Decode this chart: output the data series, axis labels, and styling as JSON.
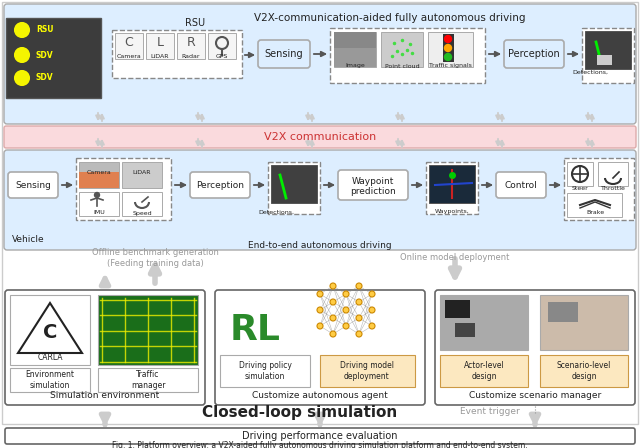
{
  "title_top": "V2X-communication-aided fully autonomous driving",
  "v2x_comm_label": "V2X communication",
  "vehicle_label": "Vehicle",
  "end_to_end_label": "End-to-end autonomous driving",
  "rsu_label": "RSU",
  "closed_loop_label": "Closed-loop simulation",
  "driving_perf_label": "Driving performance evaluation",
  "offline_label": "Offline benchmark generation\n(Feeding training data)",
  "online_label": "Online model deployment",
  "event_trigger_label": "Event trigger",
  "sim_env_label": "Simulation environment",
  "customize_agent_label": "Customize autonomous agent",
  "customize_scenario_label": "Customize scenario manager",
  "fig_caption": "Fig. 1. Platform overview: a V2X-aided fully autonomous driving simulation platform and end-to-end system.",
  "light_blue": "#ddeeff",
  "light_pink": "#fadadd",
  "orange_box": "#fce8c0",
  "green_rl": "#2a8a2a",
  "text_dark": "#222222",
  "text_gray": "#999999",
  "arrow_gray": "#bbbbbb",
  "border_dark": "#666666",
  "border_light": "#aaaaaa",
  "dashed_color": "#888888"
}
